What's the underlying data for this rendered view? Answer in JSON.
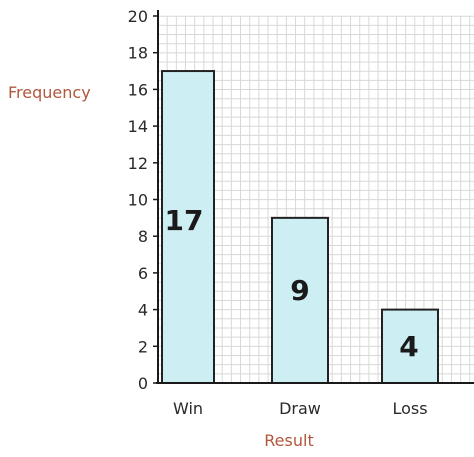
{
  "chart_data": {
    "type": "bar",
    "categories": [
      "Win",
      "Draw",
      "Loss"
    ],
    "values": [
      17,
      9,
      4
    ],
    "data_labels": [
      "17",
      "9",
      "4"
    ],
    "xlabel": "Result",
    "ylabel": "Frequency",
    "ylim": [
      0,
      20
    ],
    "yticks": [
      0,
      2,
      4,
      6,
      8,
      10,
      12,
      14,
      16,
      18,
      20
    ],
    "grid": true,
    "colors": {
      "bar_fill": "#cdeef2",
      "bar_stroke": "#222222",
      "grid": "#d8d8d8",
      "axis_title": "#b0573c"
    }
  }
}
